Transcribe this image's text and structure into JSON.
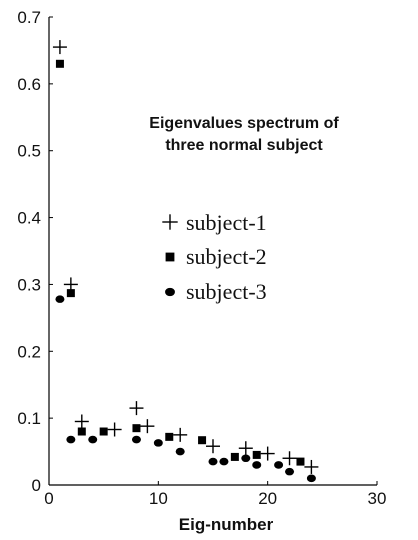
{
  "chart_data": {
    "type": "scatter",
    "title": [
      "Eigenvalues spectrum of",
      "three normal subject"
    ],
    "xlabel": "Eig-number",
    "ylabel": "",
    "xlim": [
      0,
      30
    ],
    "ylim": [
      0,
      0.7
    ],
    "x_ticks": [
      "0",
      "10",
      "20",
      "30"
    ],
    "y_ticks": [
      "0",
      "0.1",
      "0.2",
      "0.3",
      "0.4",
      "0.5",
      "0.6",
      "0.7"
    ],
    "grid": false,
    "legend_position": "middle",
    "series": [
      {
        "name": "subject-1",
        "marker": "plus",
        "color": "#000000",
        "x": [
          1,
          2,
          3,
          6,
          8,
          9,
          12,
          15,
          18,
          20,
          22,
          24
        ],
        "y": [
          0.655,
          0.3,
          0.095,
          0.083,
          0.115,
          0.088,
          0.075,
          0.058,
          0.055,
          0.047,
          0.04,
          0.027
        ]
      },
      {
        "name": "subject-2",
        "marker": "square",
        "color": "#000000",
        "x": [
          1,
          2,
          3,
          5,
          8,
          11,
          14,
          17,
          19,
          23
        ],
        "y": [
          0.63,
          0.287,
          0.08,
          0.08,
          0.085,
          0.072,
          0.067,
          0.042,
          0.045,
          0.035
        ]
      },
      {
        "name": "subject-3",
        "marker": "circle",
        "color": "#000000",
        "x": [
          1,
          2,
          4,
          8,
          10,
          12,
          15,
          16,
          18,
          19,
          21,
          22,
          24
        ],
        "y": [
          0.278,
          0.068,
          0.068,
          0.068,
          0.063,
          0.05,
          0.035,
          0.035,
          0.04,
          0.03,
          0.03,
          0.02,
          0.01
        ]
      }
    ]
  }
}
